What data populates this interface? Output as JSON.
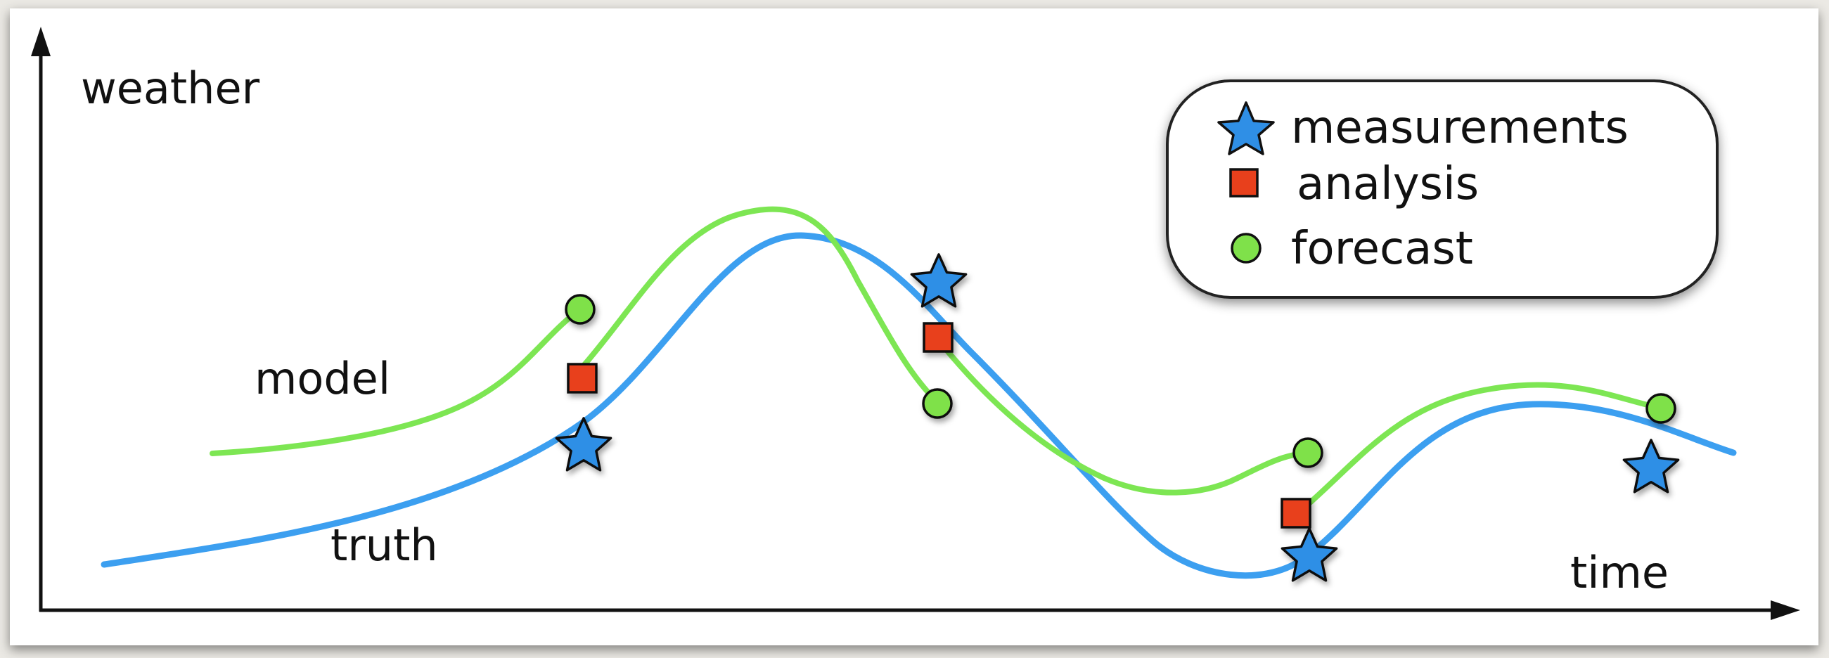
{
  "diagram": {
    "axis_y_label": "weather",
    "axis_x_label": "time",
    "curve_labels": {
      "model": "model",
      "truth": "truth"
    }
  },
  "legend": {
    "items": [
      {
        "label": "measurements",
        "marker": "star-icon",
        "color": "#2f8fe6"
      },
      {
        "label": "analysis",
        "marker": "square-icon",
        "color": "#e8401c"
      },
      {
        "label": "forecast",
        "marker": "circle-icon",
        "color": "#7fe14a"
      }
    ]
  },
  "colors": {
    "truth": "#3c9ff0",
    "model": "#7de653",
    "measurement": "#2f8fe6",
    "analysis": "#e8401c",
    "forecast": "#7fe14a",
    "axis": "#111111"
  }
}
